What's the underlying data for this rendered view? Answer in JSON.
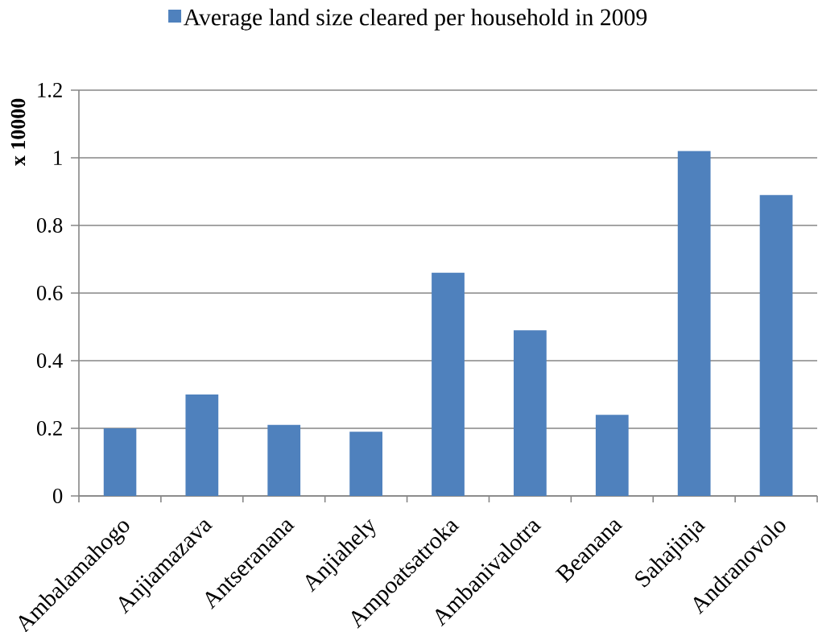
{
  "chart_data": {
    "type": "bar",
    "categories": [
      "Ambalamahogo",
      "Anjiamazava",
      "Antseranana",
      "Anjiahely",
      "Ampoatsatroka",
      "Ambanivalotra",
      "Beanana",
      "Sahajinja",
      "Andranovolo"
    ],
    "series": [
      {
        "name": "Average land size cleared per household in 2009",
        "color": "#4f81bd",
        "values": [
          0.2,
          0.3,
          0.21,
          0.19,
          0.66,
          0.49,
          0.24,
          1.02,
          0.89
        ]
      }
    ],
    "ylabel": "x 10000",
    "ylim": [
      0,
      1.2
    ],
    "yticks": [
      0,
      0.2,
      0.4,
      0.6,
      0.8,
      1,
      1.2
    ],
    "grid": "y",
    "legend": "top"
  }
}
